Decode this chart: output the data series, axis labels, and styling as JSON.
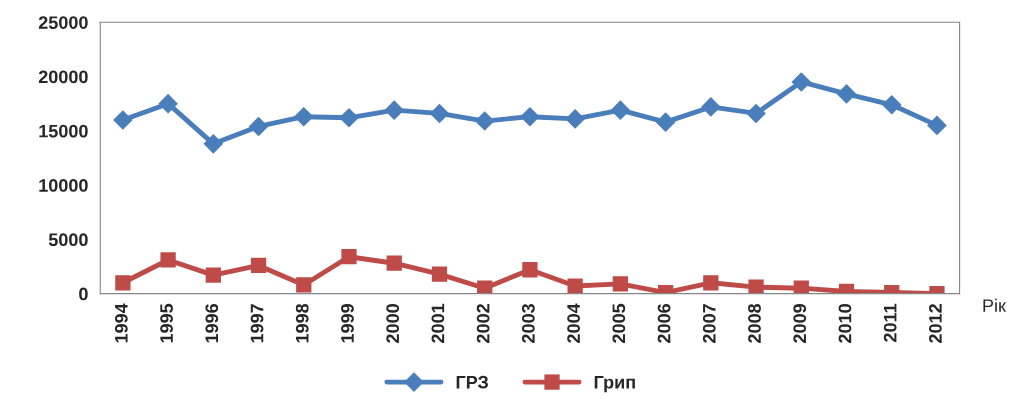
{
  "chart_data": {
    "type": "line",
    "xlabel": "Рік",
    "categories": [
      "1994",
      "1995",
      "1996",
      "1997",
      "1998",
      "1999",
      "2000",
      "2001",
      "2002",
      "2003",
      "2004",
      "2005",
      "2006",
      "2007",
      "2008",
      "2009",
      "2010",
      "2011",
      "2012"
    ],
    "series": [
      {
        "name": "ГРЗ",
        "color": "#4a7ebb",
        "marker": "diamond",
        "values": [
          16000,
          17500,
          13800,
          15400,
          16300,
          16200,
          16900,
          16600,
          15900,
          16300,
          16100,
          16900,
          15800,
          17200,
          16600,
          19500,
          18400,
          17400,
          15500
        ]
      },
      {
        "name": "Грип",
        "color": "#be4b48",
        "marker": "square",
        "values": [
          1000,
          3100,
          1700,
          2600,
          800,
          3400,
          2800,
          1800,
          500,
          2200,
          700,
          900,
          100,
          1000,
          600,
          500,
          200,
          100,
          0
        ]
      }
    ],
    "ylim": [
      0,
      25000
    ],
    "yticks": [
      0,
      5000,
      10000,
      15000,
      20000,
      25000
    ],
    "grid": false,
    "legend": "bottom",
    "line_style": "solid"
  }
}
